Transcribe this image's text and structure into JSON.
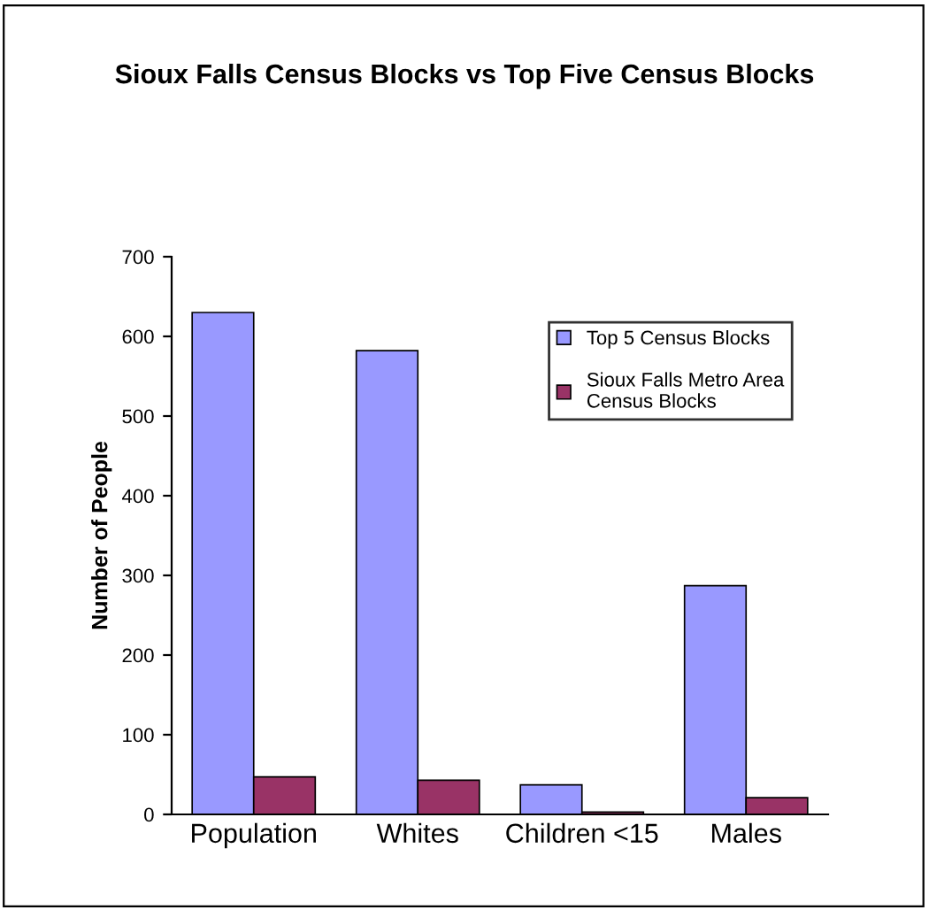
{
  "chart_data": {
    "type": "bar",
    "title": "Sioux Falls Census Blocks vs Top Five Census Blocks",
    "ylabel": "Number of People",
    "categories": [
      "Population",
      "Whites",
      "Children <15",
      "Males"
    ],
    "series": [
      {
        "name": "Top 5 Census Blocks",
        "color": "#9999ff",
        "values": [
          630,
          582,
          37,
          287
        ]
      },
      {
        "name": "Sioux Falls Metro Area\nCensus Blocks",
        "color": "#993366",
        "values": [
          47,
          43,
          3,
          21
        ]
      }
    ],
    "ylim": [
      0,
      700
    ],
    "yticks": [
      0,
      100,
      200,
      300,
      400,
      500,
      600,
      700
    ],
    "grid": false,
    "legend": "top right"
  }
}
